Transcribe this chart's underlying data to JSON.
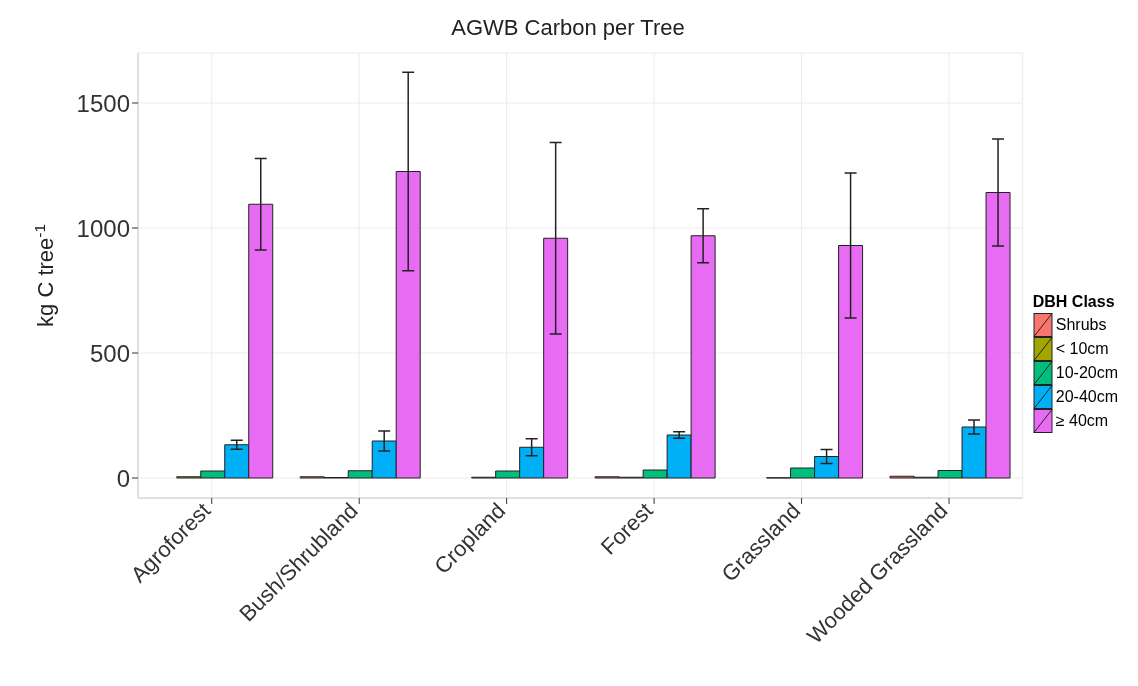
{
  "chart_data": {
    "type": "bar",
    "title": "AGWB Carbon per Tree",
    "ylabel": "kg C tree$^{-1}$",
    "legend_title": "DBH Class",
    "categories": [
      "Agroforest",
      "Bush/Shrubland",
      "Cropland",
      "Forest",
      "Grassland",
      "Wooded Grassland"
    ],
    "series": [
      {
        "name": "Shrubs",
        "color": "#f8766d",
        "values": [
          null,
          5,
          null,
          5,
          null,
          7
        ]
      },
      {
        "name": "< 10cm",
        "color": "#a3a500",
        "values": [
          5,
          2,
          3,
          3,
          1,
          3
        ]
      },
      {
        "name": "10-20cm",
        "color": "#00bf7d",
        "values": [
          28,
          29,
          28,
          32,
          40,
          30
        ]
      },
      {
        "name": "20-40cm",
        "color": "#00b0f6",
        "values": [
          133,
          148,
          123,
          172,
          86,
          204
        ],
        "errors": [
          18,
          40,
          34,
          13,
          28,
          28
        ]
      },
      {
        "name": "≥ 40cm",
        "color": "#e76bf3",
        "values": [
          1095,
          1226,
          959,
          969,
          930,
          1142
        ],
        "errors": [
          183,
          397,
          383,
          108,
          290,
          214
        ]
      }
    ],
    "ylim": [
      -80,
      1700
    ],
    "yticks": [
      0,
      500,
      1000,
      1500
    ],
    "grid": true,
    "legend": "right"
  }
}
